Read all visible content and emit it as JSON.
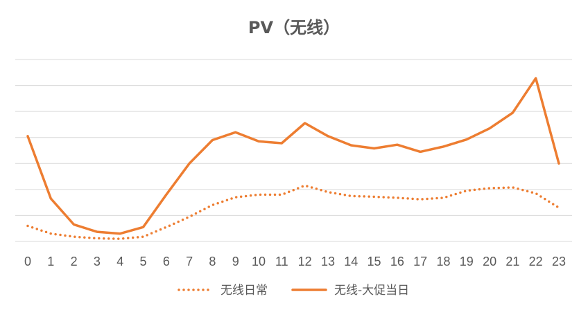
{
  "chart_data": {
    "type": "line",
    "title": "PV（无线）",
    "x": [
      "0",
      "1",
      "2",
      "3",
      "4",
      "5",
      "6",
      "7",
      "8",
      "9",
      "10",
      "11",
      "12",
      "13",
      "14",
      "15",
      "16",
      "17",
      "18",
      "19",
      "20",
      "21",
      "22",
      "23"
    ],
    "ylim": [
      0,
      7
    ],
    "grid": true,
    "y_tick_labels_visible": false,
    "legend_position": "bottom",
    "series": [
      {
        "name": "无线日常",
        "style": "dotted",
        "color": "#ED7D31",
        "values": [
          0.6,
          0.3,
          0.18,
          0.12,
          0.1,
          0.18,
          0.55,
          0.95,
          1.4,
          1.7,
          1.8,
          1.8,
          2.15,
          1.9,
          1.75,
          1.72,
          1.68,
          1.62,
          1.68,
          1.95,
          2.05,
          2.08,
          1.85,
          1.3
        ]
      },
      {
        "name": "无线-大促当日",
        "style": "solid",
        "color": "#ED7D31",
        "values": [
          4.05,
          1.65,
          0.65,
          0.37,
          0.3,
          0.55,
          1.8,
          3.0,
          3.9,
          4.2,
          3.85,
          3.78,
          4.55,
          4.05,
          3.7,
          3.58,
          3.72,
          3.45,
          3.65,
          3.92,
          4.35,
          4.95,
          6.28,
          3.0
        ]
      }
    ]
  }
}
